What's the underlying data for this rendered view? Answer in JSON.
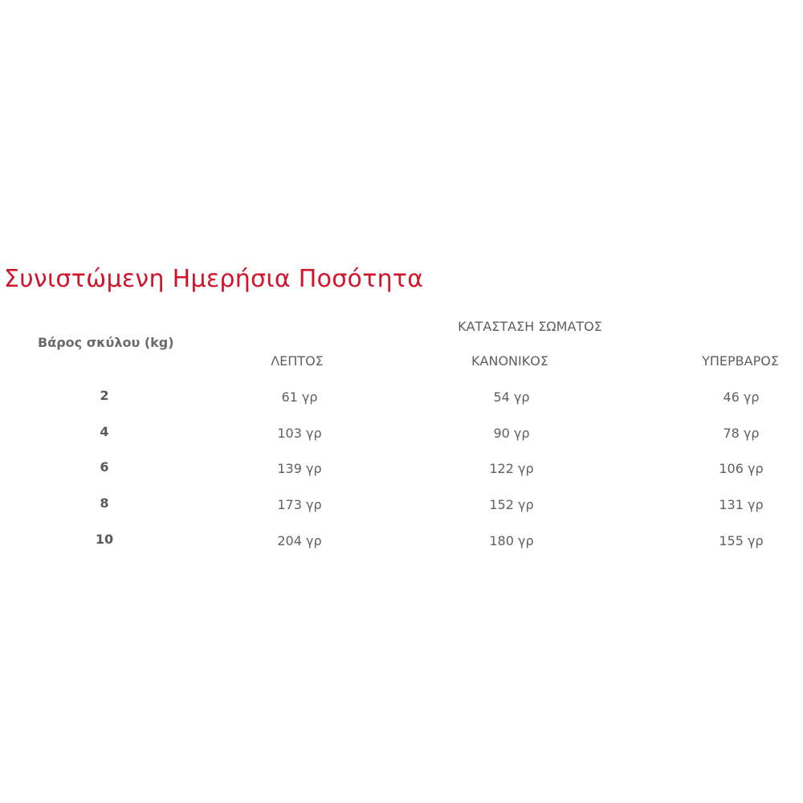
{
  "title": "Συνιστώμενη Ημερήσια Ποσότητα",
  "table": {
    "group_header": "ΚΑΤΑΣΤΑΣΗ ΣΩΜΑΤΟΣ",
    "weight_header": "Βάρος σκύλου (kg)",
    "columns": [
      "ΛΕΠΤΟΣ",
      "ΚΑΝΟΝΙΚΟΣ",
      "ΥΠΕΡΒΑΡΟΣ"
    ],
    "rows": [
      {
        "weight": "2",
        "values": [
          "61 γρ",
          "54 γρ",
          "46 γρ"
        ]
      },
      {
        "weight": "4",
        "values": [
          "103 γρ",
          "90 γρ",
          "78 γρ"
        ]
      },
      {
        "weight": "6",
        "values": [
          "139 γρ",
          "122 γρ",
          "106 γρ"
        ]
      },
      {
        "weight": "8",
        "values": [
          "173 γρ",
          "152 γρ",
          "131 γρ"
        ]
      },
      {
        "weight": "10",
        "values": [
          "204 γρ",
          "180 γρ",
          "155 γρ"
        ]
      }
    ]
  },
  "colors": {
    "title": "#d0142a",
    "text": "#5f5f5f"
  }
}
